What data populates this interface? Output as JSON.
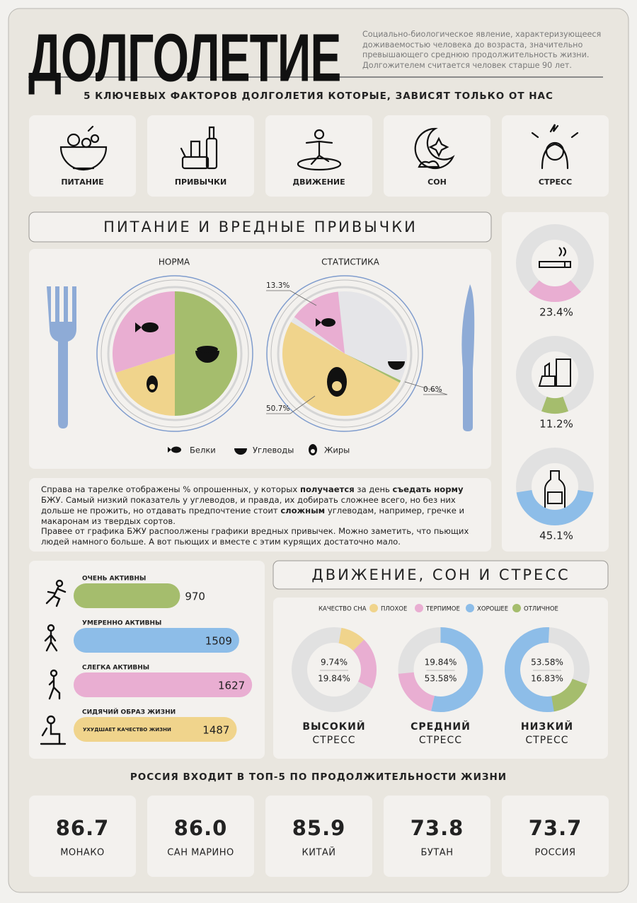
{
  "header": {
    "title": "ДОЛГОЛЕТИЕ",
    "description": "Социально-биологическое явление, характеризующееся доживаемостью человека до возраста, значительно превышающего среднюю продолжительность жизни. Долгожителем считается человек старше 90 лет."
  },
  "factors": {
    "title": "5 КЛЮЧЕВЫХ ФАКТОРОВ ДОЛГОЛЕТИЯ КОТОРЫЕ, ЗАВИСЯТ ТОЛЬКО ОТ НАС",
    "items": [
      "ПИТАНИЕ",
      "ПРИВЫЧКИ",
      "ДВИЖЕНИЕ",
      "СОН",
      "СТРЕСС"
    ]
  },
  "nutrition_title": "ПИТАНИЕ И ВРЕДНЫЕ ПРИВЫЧКИ",
  "movement_title": "ДВИЖЕНИЕ, СОН И СТРЕСС",
  "text_block": {
    "paragraphs": [
      [
        {
          "text": "Справа на тарелке отображены % опрошенных, у которых ",
          "bold": false
        },
        {
          "text": "получается",
          "bold": true
        },
        {
          "text": " за день ",
          "bold": false
        },
        {
          "text": "съедать норму",
          "bold": true
        },
        {
          "text": " БЖУ. Самый низкий показатель у углеводов, и правда, их добирать сложнее всего, но без них дольше не прожить, но отдавать предпочтение стоит ",
          "bold": false
        },
        {
          "text": "сложным",
          "bold": true
        },
        {
          "text": " углеводам, например, гречке и макаронам из твердых сортов.",
          "bold": false
        }
      ],
      [
        {
          "text": "Правее от графика БЖУ распоолжены графики вредных привычек. Можно заметить, что пьющих людей намного больше. А вот пьющих и вместе с этим курящих достаточно мало.",
          "bold": false
        }
      ]
    ]
  },
  "chart_data": [
    {
      "type": "pie",
      "title": "НОРМА",
      "categories": [
        "Белки",
        "Углеводы",
        "Жиры"
      ],
      "colors": [
        "#e9aed2",
        "#a5bd6d",
        "#f0d48c"
      ],
      "values": [
        30,
        50,
        20
      ]
    },
    {
      "type": "pie",
      "title": "СТАТИСТИКА",
      "colors": [
        "#e9aed2",
        "#a5bd6d",
        "#f0d48c"
      ],
      "values": [
        13.3,
        0.6,
        50.7
      ],
      "value_labels": [
        "13.3%",
        "0.6%",
        "50.7%"
      ]
    },
    {
      "type": "gauge",
      "colors": [
        "#e9aed2",
        "#a5bd6d",
        "#8dbde8"
      ],
      "values": [
        23.4,
        11.2,
        45.1
      ],
      "value_labels": [
        "23.4%",
        "11.2%",
        "45.1%"
      ]
    },
    {
      "type": "bar",
      "categories": [
        "ОЧЕНЬ АКТИВНЫ",
        "УМЕРЕННО АКТИВНЫ",
        "СЛЕГКА АКТИВНЫ",
        "СИДЯЧИЙ ОБРАЗ ЖИЗНИ"
      ],
      "colors": [
        "#a5bd6d",
        "#8dbde8",
        "#e9aed2",
        "#f0d48c"
      ],
      "values": [
        970,
        1509,
        1627,
        1487
      ],
      "note": "УХУДШАЕТ КАЧЕСТВО ЖИЗНИ"
    },
    {
      "type": "donut",
      "legend_title": "КАЧЕСТВО СНА",
      "categories": [
        "ПЛОХОЕ",
        "ТЕРПИМОЕ",
        "ХОРОШЕЕ",
        "ОТЛИЧНОЕ"
      ],
      "colors": [
        "#f0d48c",
        "#e9aed2",
        "#8dbde8",
        "#a5bd6d"
      ],
      "panels": [
        {
          "title": [
            "ВЫСОКИЙ",
            "СТРЕСС"
          ],
          "values": [
            9.74,
            19.84,
            null,
            null
          ],
          "value_labels": [
            "9.74%",
            "19.84%",
            null,
            null
          ]
        },
        {
          "title": [
            "СРЕДНИЙ",
            "СТРЕСС"
          ],
          "values": [
            null,
            19.84,
            53.58,
            null
          ],
          "value_labels": [
            null,
            "19.84%",
            "53.58%",
            null
          ]
        },
        {
          "title": [
            "НИЗКИЙ",
            "СТРЕСС"
          ],
          "values": [
            null,
            null,
            53.58,
            16.83
          ],
          "value_labels": [
            null,
            null,
            "53.58%",
            "16.83%"
          ]
        }
      ]
    }
  ],
  "countries": {
    "title": "РОССИЯ ВХОДИТ В ТОП-5 ПО ПРОДОЛЖИТЕЛЬНОСТИ ЖИЗНИ",
    "names": [
      "МОНАКО",
      "САН МАРИНО",
      "КИТАЙ",
      "БУТАН",
      "РОССИЯ"
    ],
    "values": [
      86.7,
      86.0,
      85.9,
      73.8,
      73.7
    ],
    "value_labels": [
      "86.7",
      "86.0",
      "85.9",
      "73.8",
      "73.7"
    ]
  }
}
